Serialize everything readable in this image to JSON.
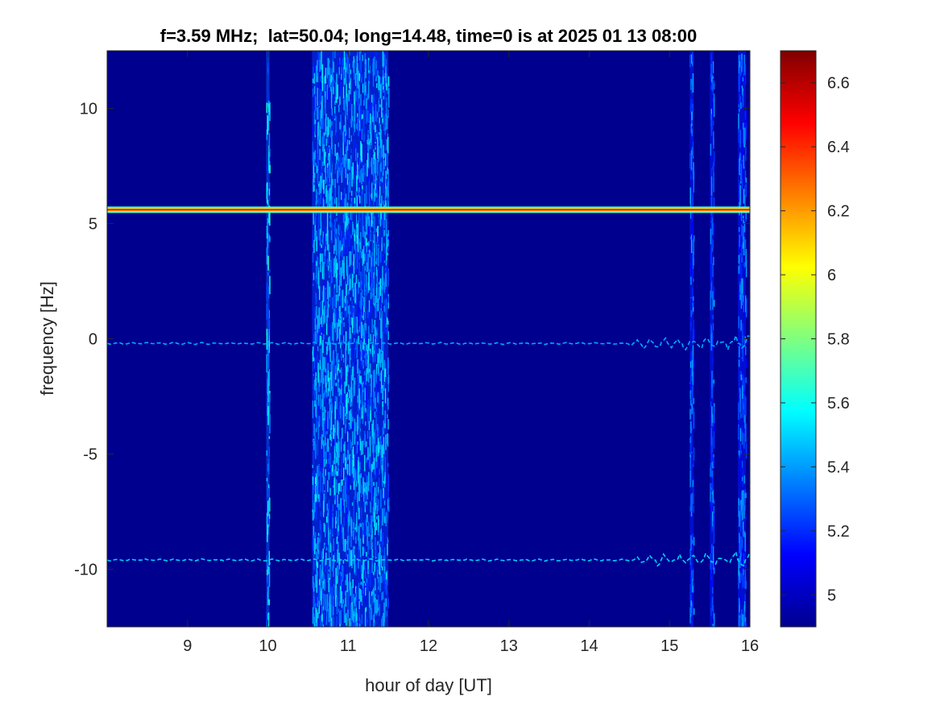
{
  "chart_data": {
    "type": "heatmap",
    "title": "f=3.59 MHz;  lat=50.04; long=14.48, time=0 is at 2025 01 13 08:00",
    "xlabel": "hour of day [UT]",
    "ylabel": "frequency [Hz]",
    "xlim": [
      8,
      16
    ],
    "ylim": [
      -12.5,
      12.5
    ],
    "x_ticks": [
      9,
      10,
      11,
      12,
      13,
      14,
      15,
      16
    ],
    "x_tick_labels": [
      "9",
      "10",
      "11",
      "12",
      "13",
      "14",
      "15",
      "16"
    ],
    "y_ticks": [
      -10,
      -5,
      0,
      5,
      10
    ],
    "y_tick_labels": [
      "-10",
      "-5",
      "0",
      "5",
      "10"
    ],
    "colormap": "jet",
    "background_color": "#00008f",
    "colorbar": {
      "limits": [
        4.9,
        6.7
      ],
      "ticks": [
        5,
        5.2,
        5.4,
        5.6,
        5.8,
        6,
        6.2,
        6.4,
        6.6
      ],
      "tick_labels": [
        "5",
        "5.2",
        "5.4",
        "5.6",
        "5.8",
        "6",
        "6.2",
        "6.4",
        "6.6"
      ]
    },
    "features": {
      "carrier_line": {
        "frequency_hz": 5.6,
        "x_range": [
          8,
          16
        ],
        "level": 6.5
      },
      "doppler_traces": [
        {
          "frequency_hz": -0.2,
          "x_range": [
            8,
            16
          ],
          "level": 5.6
        },
        {
          "frequency_hz": -9.6,
          "x_range": [
            8,
            16
          ],
          "level": 5.7
        }
      ],
      "broadband_bands": [
        {
          "x_range": [
            10.55,
            11.5
          ],
          "level": 5.5
        },
        {
          "x_range": [
            9.98,
            10.02
          ],
          "level": 5.6
        },
        {
          "x_range": [
            15.25,
            15.3
          ],
          "level": 5.4
        },
        {
          "x_range": [
            15.5,
            15.55
          ],
          "level": 5.4
        },
        {
          "x_range": [
            15.85,
            15.95
          ],
          "level": 5.4
        }
      ]
    }
  }
}
